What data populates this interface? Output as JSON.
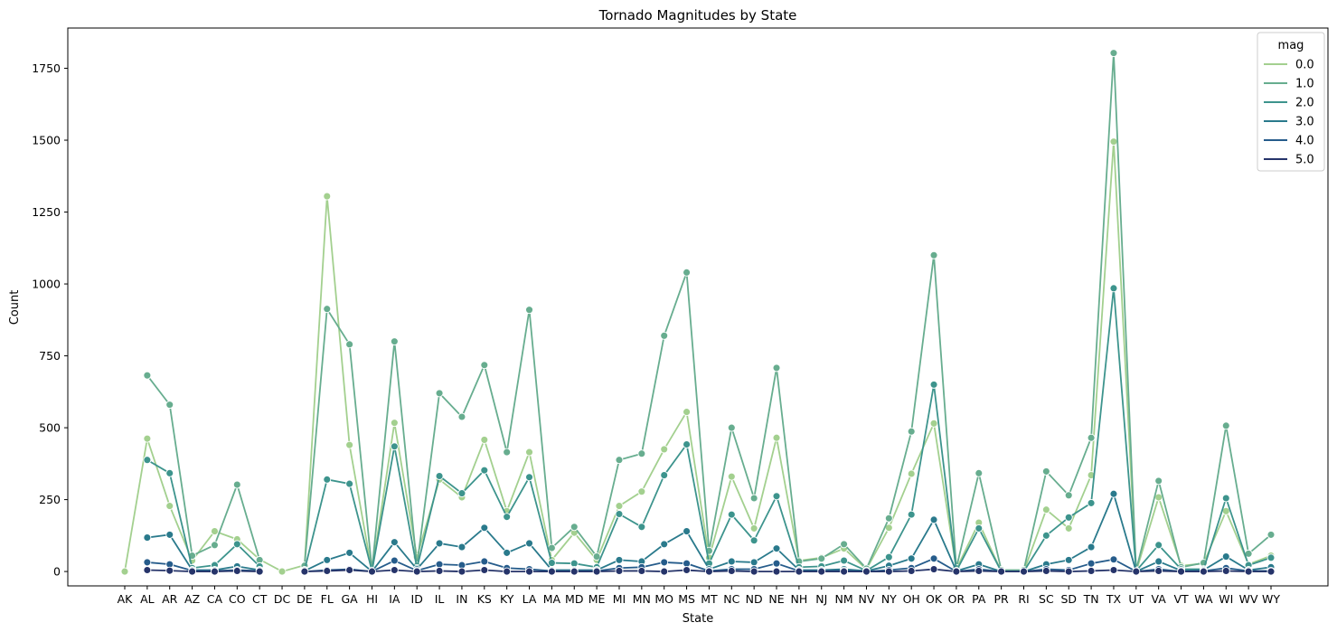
{
  "chart_data": {
    "type": "line",
    "title": "Tornado Magnitudes by State",
    "xlabel": "State",
    "ylabel": "Count",
    "ylim": [
      -50,
      1890
    ],
    "yticks": [
      0,
      250,
      500,
      750,
      1000,
      1250,
      1500,
      1750
    ],
    "legend": {
      "title": "mag",
      "placement": "top-right"
    },
    "grid": false,
    "categories": [
      "AK",
      "AL",
      "AR",
      "AZ",
      "CA",
      "CO",
      "CT",
      "DC",
      "DE",
      "FL",
      "GA",
      "HI",
      "IA",
      "ID",
      "IL",
      "IN",
      "KS",
      "KY",
      "LA",
      "MA",
      "MD",
      "ME",
      "MI",
      "MN",
      "MO",
      "MS",
      "MT",
      "NC",
      "ND",
      "NE",
      "NH",
      "NJ",
      "NM",
      "NV",
      "NY",
      "OH",
      "OK",
      "OR",
      "PA",
      "PR",
      "RI",
      "SC",
      "SD",
      "TN",
      "TX",
      "UT",
      "VA",
      "VT",
      "WA",
      "WI",
      "WV",
      "WY"
    ],
    "series": [
      {
        "name": "0.0",
        "color": "#a3d08f",
        "values": [
          0,
          462,
          228,
          38,
          140,
          112,
          42,
          0,
          22,
          1305,
          440,
          0,
          517,
          50,
          320,
          258,
          458,
          210,
          415,
          40,
          135,
          40,
          228,
          278,
          425,
          555,
          48,
          330,
          150,
          465,
          38,
          48,
          80,
          8,
          152,
          340,
          515,
          8,
          170,
          0,
          0,
          215,
          150,
          335,
          1495,
          0,
          258,
          20,
          28,
          210,
          25,
          55
        ]
      },
      {
        "name": "1.0",
        "color": "#67ad8f",
        "values": [
          null,
          682,
          580,
          55,
          92,
          302,
          40,
          null,
          20,
          913,
          790,
          5,
          800,
          20,
          620,
          538,
          718,
          415,
          910,
          82,
          155,
          52,
          388,
          410,
          820,
          1040,
          72,
          500,
          255,
          708,
          35,
          45,
          95,
          10,
          185,
          487,
          1100,
          12,
          342,
          5,
          5,
          348,
          265,
          465,
          1803,
          5,
          315,
          15,
          30,
          507,
          62,
          128
        ]
      },
      {
        "name": "2.0",
        "color": "#3d948d",
        "values": [
          null,
          388,
          342,
          12,
          22,
          95,
          18,
          null,
          5,
          320,
          305,
          2,
          435,
          12,
          332,
          272,
          352,
          190,
          328,
          30,
          28,
          15,
          200,
          155,
          335,
          442,
          28,
          198,
          108,
          262,
          15,
          18,
          38,
          3,
          50,
          198,
          650,
          2,
          150,
          0,
          0,
          125,
          188,
          238,
          985,
          2,
          92,
          8,
          8,
          255,
          22,
          48
        ]
      },
      {
        "name": "3.0",
        "color": "#2a7a8c",
        "values": [
          null,
          118,
          128,
          5,
          5,
          18,
          5,
          null,
          2,
          40,
          65,
          0,
          102,
          8,
          98,
          85,
          152,
          65,
          98,
          5,
          5,
          5,
          40,
          35,
          95,
          140,
          8,
          35,
          32,
          80,
          5,
          5,
          8,
          2,
          20,
          45,
          180,
          2,
          25,
          0,
          0,
          25,
          40,
          85,
          270,
          0,
          35,
          3,
          5,
          52,
          5,
          15
        ]
      },
      {
        "name": "4.0",
        "color": "#265c8b",
        "values": [
          null,
          32,
          25,
          3,
          2,
          5,
          2,
          null,
          0,
          5,
          8,
          0,
          38,
          3,
          25,
          22,
          35,
          12,
          8,
          2,
          2,
          2,
          12,
          15,
          32,
          28,
          2,
          8,
          8,
          28,
          2,
          2,
          3,
          0,
          5,
          12,
          45,
          0,
          8,
          0,
          0,
          8,
          5,
          28,
          42,
          0,
          8,
          0,
          2,
          12,
          2,
          2
        ]
      },
      {
        "name": "5.0",
        "color": "#26346a",
        "values": [
          null,
          5,
          3,
          0,
          0,
          2,
          0,
          null,
          0,
          2,
          5,
          0,
          5,
          0,
          2,
          0,
          5,
          0,
          0,
          0,
          0,
          0,
          2,
          2,
          0,
          5,
          0,
          2,
          0,
          0,
          0,
          0,
          0,
          0,
          0,
          2,
          8,
          0,
          2,
          0,
          0,
          2,
          0,
          2,
          5,
          0,
          2,
          0,
          0,
          2,
          0,
          0
        ]
      }
    ]
  }
}
